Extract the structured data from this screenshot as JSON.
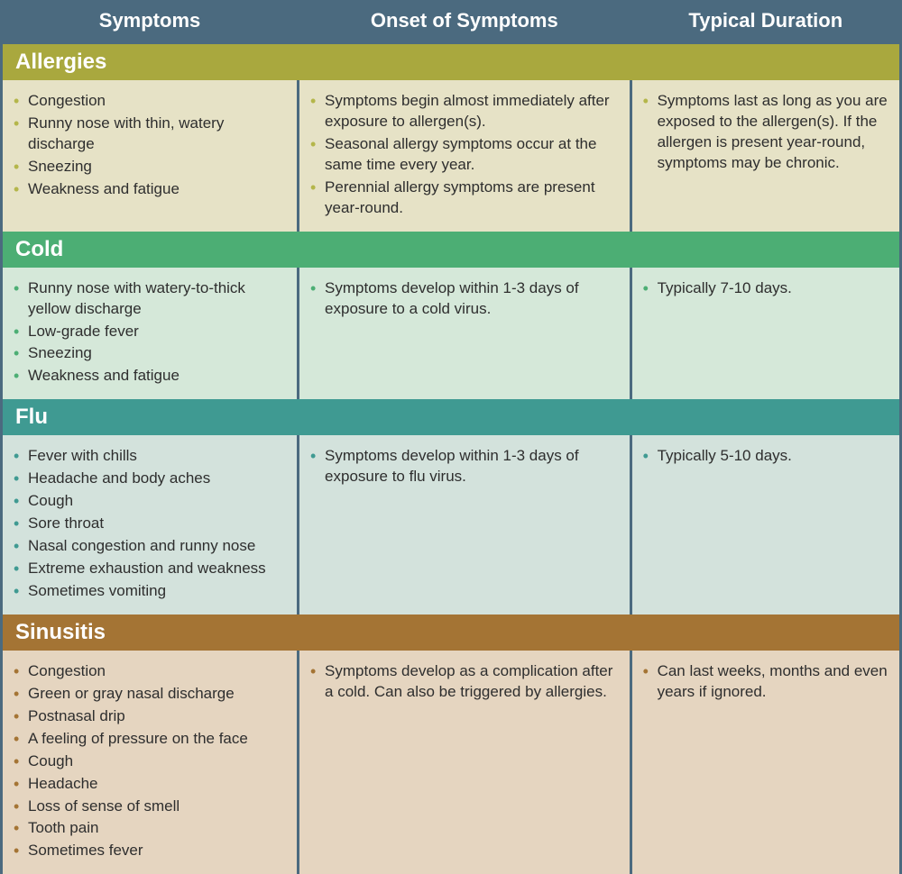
{
  "columns": {
    "symptoms": "Symptoms",
    "onset": "Onset of Symptoms",
    "duration": "Typical Duration"
  },
  "styling": {
    "table_border_color": "#4b6a7f",
    "header_bg": "#4b6a7f",
    "header_text_color": "#ffffff",
    "header_fontsize": 22,
    "section_title_text_color": "#ffffff",
    "section_title_fontsize": 24,
    "body_fontsize": 17,
    "body_text_color": "#2e2e2e",
    "col_widths": {
      "symptoms": "33%",
      "onset": "37%",
      "duration": "30%"
    }
  },
  "sections": [
    {
      "name": "Allergies",
      "title_bg": "#a9a83e",
      "row_bg": "#e6e2c6",
      "bullet_color": "#b4b64a",
      "symptoms": [
        "Congestion",
        "Runny nose with thin, watery discharge",
        "Sneezing",
        "Weakness and fatigue"
      ],
      "onset": [
        "Symptoms begin almost immediately after exposure to allergen(s).",
        "Seasonal allergy symptoms occur at the same time every year.",
        "Perennial allergy symptoms are present year-round."
      ],
      "duration": [
        "Symptoms last as long as you are exposed to the allergen(s). If the allergen is present year-round, symptoms may be chronic."
      ]
    },
    {
      "name": "Cold",
      "title_bg": "#4cae74",
      "row_bg": "#d5e8d9",
      "bullet_color": "#4cae74",
      "symptoms": [
        "Runny nose with watery-to-thick yellow discharge",
        "Low-grade fever",
        "Sneezing",
        "Weakness and fatigue"
      ],
      "onset": [
        "Symptoms develop within 1-3 days of exposure to a cold virus."
      ],
      "duration": [
        "Typically 7-10 days."
      ]
    },
    {
      "name": "Flu",
      "title_bg": "#3f9a92",
      "row_bg": "#d3e2dc",
      "bullet_color": "#3f9a92",
      "symptoms": [
        "Fever with chills",
        "Headache and body aches",
        "Cough",
        "Sore throat",
        "Nasal congestion and runny nose",
        "Extreme exhaustion and weakness",
        "Sometimes vomiting"
      ],
      "onset": [
        "Symptoms develop within 1-3 days of exposure to flu virus."
      ],
      "duration": [
        "Typically 5-10 days."
      ]
    },
    {
      "name": "Sinusitis",
      "title_bg": "#a47434",
      "row_bg": "#e5d5c0",
      "bullet_color": "#a47434",
      "symptoms": [
        "Congestion",
        "Green or gray nasal discharge",
        "Postnasal drip",
        "A feeling of pressure on the face",
        "Cough",
        "Headache",
        "Loss of sense of smell",
        "Tooth pain",
        "Sometimes fever"
      ],
      "onset": [
        "Symptoms develop as a complication after a cold. Can also be triggered by allergies."
      ],
      "duration": [
        "Can last weeks, months and even years if ignored."
      ]
    }
  ]
}
